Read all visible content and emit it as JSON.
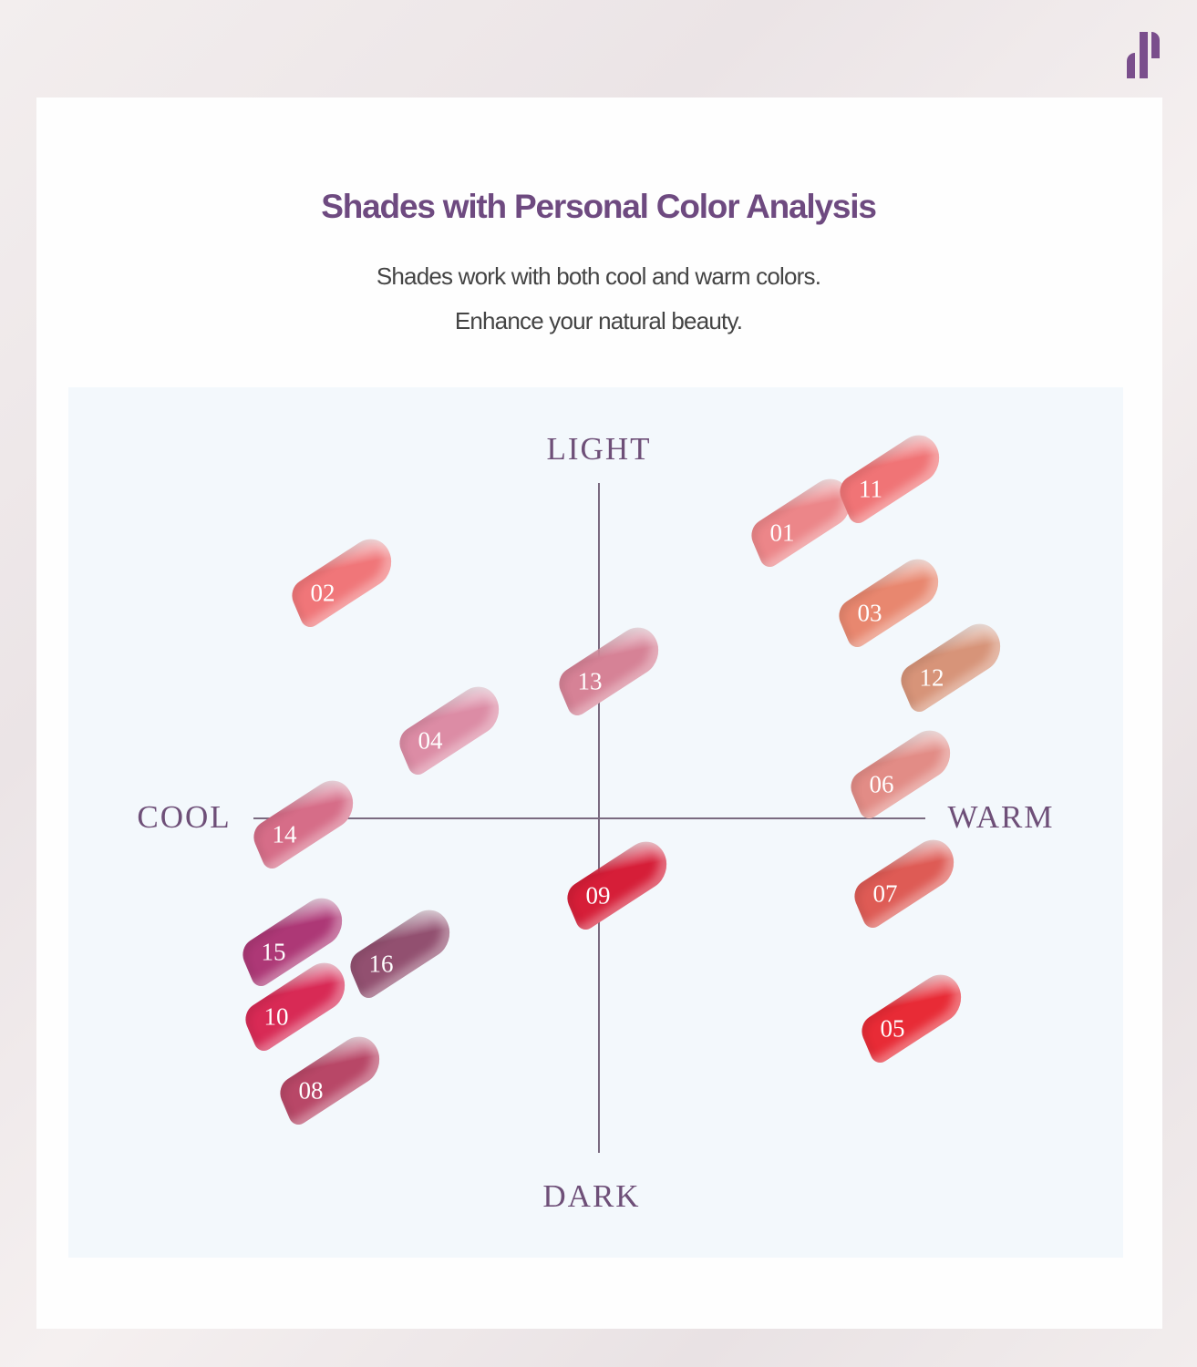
{
  "brand_logo": "brand-logo",
  "header": {
    "title": "Shades with Personal Color Analysis",
    "subtitle_line1": "Shades work with both cool and warm colors.",
    "subtitle_line2": "Enhance your natural beauty."
  },
  "axes": {
    "top": "LIGHT",
    "bottom": "DARK",
    "left": "COOL",
    "right": "WARM"
  },
  "shades": [
    {
      "label": "01",
      "color": "#ec8689"
    },
    {
      "label": "02",
      "color": "#f07679"
    },
    {
      "label": "03",
      "color": "#e8876f"
    },
    {
      "label": "04",
      "color": "#dc8ca5"
    },
    {
      "label": "05",
      "color": "#e82b36"
    },
    {
      "label": "06",
      "color": "#e28c86"
    },
    {
      "label": "07",
      "color": "#de5b55"
    },
    {
      "label": "08",
      "color": "#b84767"
    },
    {
      "label": "09",
      "color": "#d61e38"
    },
    {
      "label": "10",
      "color": "#d82a55"
    },
    {
      "label": "11",
      "color": "#f07476"
    },
    {
      "label": "12",
      "color": "#d79479"
    },
    {
      "label": "13",
      "color": "#d68296"
    },
    {
      "label": "14",
      "color": "#d66d88"
    },
    {
      "label": "15",
      "color": "#ad3876"
    },
    {
      "label": "16",
      "color": "#925070"
    }
  ]
}
